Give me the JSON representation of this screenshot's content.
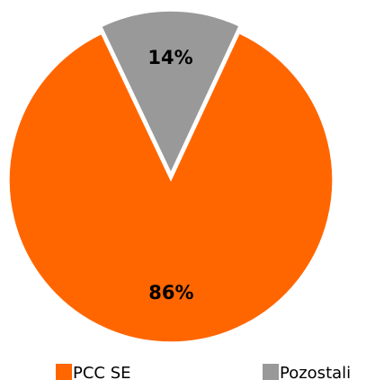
{
  "chart_data": {
    "type": "pie",
    "categories": [
      "PCC SE",
      "Pozostali"
    ],
    "values": [
      86,
      14
    ],
    "data_labels": [
      "86%",
      "14%"
    ],
    "colors": [
      "#ff6600",
      "#999999"
    ],
    "exploded": [
      false,
      true
    ],
    "legend_position": "bottom",
    "title": ""
  }
}
